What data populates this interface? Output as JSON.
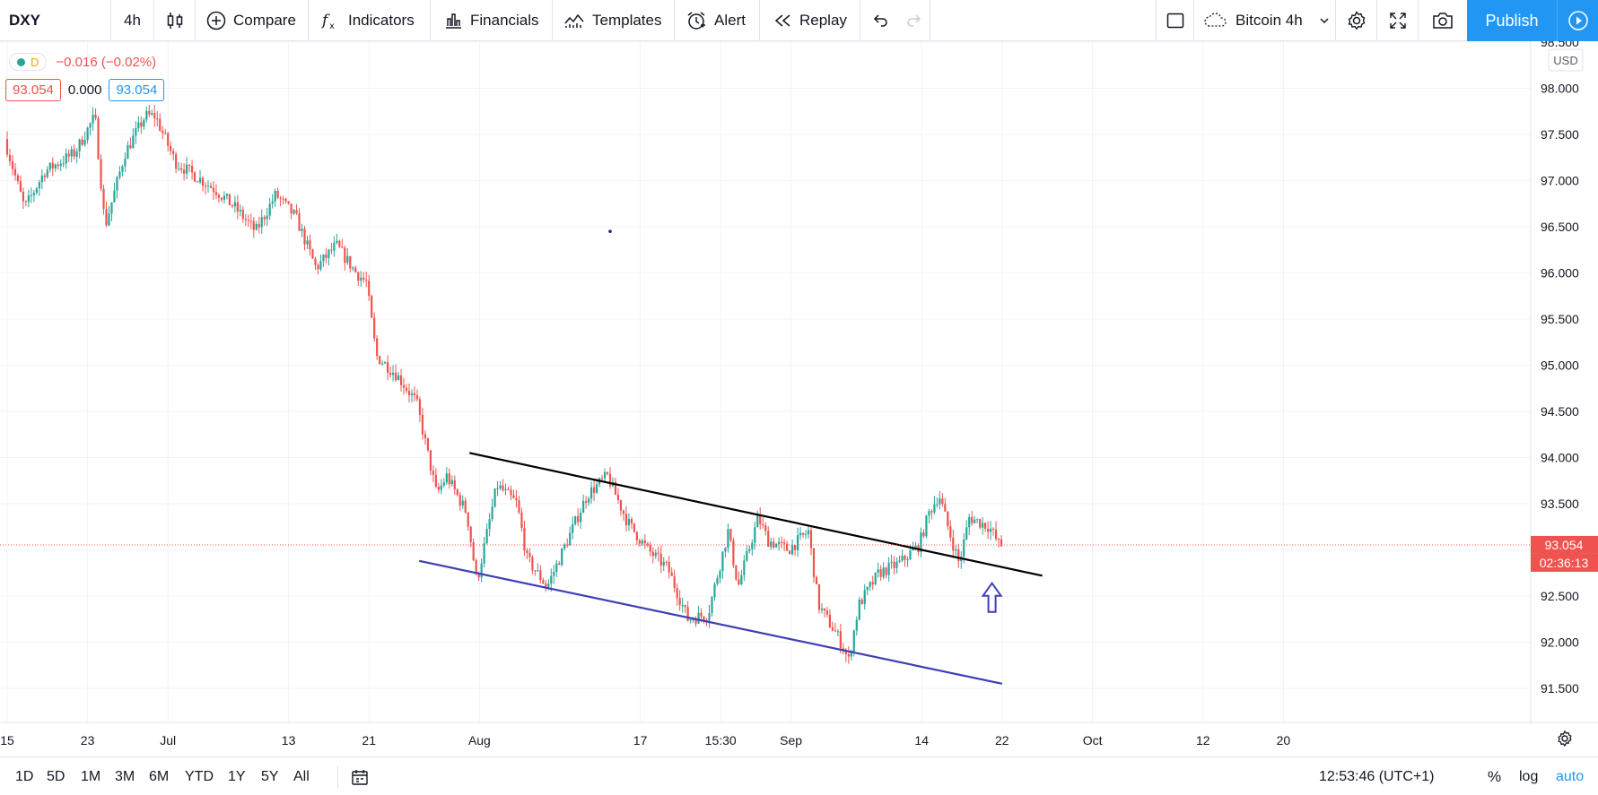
{
  "toolbar": {
    "symbol": "DXY",
    "interval": "4h",
    "compare": "Compare",
    "indicators": "Indicators",
    "financials": "Financials",
    "templates": "Templates",
    "alert": "Alert",
    "replay": "Replay",
    "layout_name": "Bitcoin 4h",
    "publish": "Publish"
  },
  "legend": {
    "badge": "D",
    "change": "−0.016 (−0.02%)",
    "bid": "93.054",
    "spread": "0.000",
    "ask": "93.054"
  },
  "price_axis": {
    "currency": "USD",
    "ticks": [
      "98.500",
      "98.000",
      "97.500",
      "97.000",
      "96.500",
      "96.000",
      "95.500",
      "95.000",
      "94.500",
      "94.000",
      "93.500",
      "93.000",
      "92.500",
      "92.000",
      "91.500"
    ],
    "last_price": "93.054",
    "countdown": "02:36:13"
  },
  "time_axis": {
    "ticks": [
      "15",
      "23",
      "Jul",
      "13",
      "21",
      "Aug",
      "17",
      "15:30",
      "Sep",
      "14",
      "22",
      "Oct",
      "12",
      "20"
    ]
  },
  "bottom": {
    "ranges": [
      "1D",
      "5D",
      "1M",
      "3M",
      "6M",
      "YTD",
      "1Y",
      "5Y",
      "All"
    ],
    "clock": "12:53:46 (UTC+1)",
    "percent": "%",
    "log": "log",
    "auto": "auto"
  },
  "colors": {
    "up": "#26a69a",
    "down": "#ef5350",
    "accent": "#2196f3",
    "upper_trendline": "#000000",
    "lower_trendline": "#3f3fb5",
    "arrow": "#3f3fb5"
  },
  "icons": [
    "candles-icon",
    "plus-circle-icon",
    "fx-icon",
    "financials-icon",
    "templates-icon",
    "alarm-clock-icon",
    "rewind-icon",
    "undo-icon",
    "redo-icon",
    "layout-square-icon",
    "cloud-icon",
    "chevron-down-icon",
    "gear-icon",
    "fullscreen-icon",
    "camera-icon",
    "play-icon",
    "calendar-icon",
    "axis-settings-icon"
  ],
  "chart_data": {
    "type": "candlestick",
    "symbol": "DXY",
    "interval": "4h",
    "y_unit": "USD",
    "ylim": [
      91.2,
      98.6
    ],
    "last_price": 93.054,
    "grid": true,
    "x_range": [
      "2020-06-15",
      "2020-10-22"
    ],
    "series": [
      {
        "name": "",
        "anchors": [
          [
            "2020-06-15",
            97.45
          ],
          [
            "2020-06-17",
            96.7
          ],
          [
            "2020-06-19",
            97.1
          ],
          [
            "2020-06-22",
            97.3
          ],
          [
            "2020-06-24",
            97.7
          ],
          [
            "2020-06-25",
            96.5
          ],
          [
            "2020-06-27",
            97.3
          ],
          [
            "2020-06-29",
            97.7
          ],
          [
            "2020-06-30",
            97.7
          ],
          [
            "2020-07-02",
            97.2
          ],
          [
            "2020-07-06",
            96.9
          ],
          [
            "2020-07-08",
            96.7
          ],
          [
            "2020-07-10",
            96.45
          ],
          [
            "2020-07-12",
            96.85
          ],
          [
            "2020-07-14",
            96.6
          ],
          [
            "2020-07-16",
            96.05
          ],
          [
            "2020-07-18",
            96.3
          ],
          [
            "2020-07-20",
            96.0
          ],
          [
            "2020-07-21",
            95.9
          ],
          [
            "2020-07-22",
            95.1
          ],
          [
            "2020-07-24",
            94.9
          ],
          [
            "2020-07-26",
            94.6
          ],
          [
            "2020-07-27",
            94.1
          ],
          [
            "2020-07-28",
            93.6
          ],
          [
            "2020-07-29",
            93.8
          ],
          [
            "2020-07-31",
            93.4
          ],
          [
            "2020-08-01",
            92.65
          ],
          [
            "2020-08-03",
            93.7
          ],
          [
            "2020-08-05",
            93.5
          ],
          [
            "2020-08-06",
            92.9
          ],
          [
            "2020-08-08",
            92.6
          ],
          [
            "2020-08-10",
            93.1
          ],
          [
            "2020-08-12",
            93.6
          ],
          [
            "2020-08-14",
            93.8
          ],
          [
            "2020-08-16",
            93.3
          ],
          [
            "2020-08-18",
            93.0
          ],
          [
            "2020-08-20",
            92.8
          ],
          [
            "2020-08-22",
            92.25
          ],
          [
            "2020-08-24",
            92.3
          ],
          [
            "2020-08-26",
            93.2
          ],
          [
            "2020-08-27",
            92.6
          ],
          [
            "2020-08-29",
            93.35
          ],
          [
            "2020-08-30",
            93.1
          ],
          [
            "2020-09-01",
            93.0
          ],
          [
            "2020-09-03",
            93.2
          ],
          [
            "2020-09-04",
            92.4
          ],
          [
            "2020-09-06",
            92.05
          ],
          [
            "2020-09-07",
            91.8
          ],
          [
            "2020-09-08",
            92.4
          ],
          [
            "2020-09-10",
            92.75
          ],
          [
            "2020-09-12",
            92.85
          ],
          [
            "2020-09-14",
            93.05
          ],
          [
            "2020-09-15",
            93.4
          ],
          [
            "2020-09-16",
            93.6
          ],
          [
            "2020-09-17",
            93.2
          ],
          [
            "2020-09-18",
            92.85
          ],
          [
            "2020-09-19",
            93.35
          ],
          [
            "2020-09-21",
            93.25
          ],
          [
            "2020-09-22",
            93.05
          ]
        ]
      }
    ],
    "drawings": [
      {
        "type": "trendline",
        "from": [
          "2020-07-31",
          94.05
        ],
        "to": [
          "2020-09-26",
          92.72
        ]
      },
      {
        "type": "trendline",
        "from": [
          "2020-07-26",
          92.88
        ],
        "to": [
          "2020-09-22",
          91.55
        ]
      },
      {
        "type": "arrow",
        "direction": "up",
        "at": [
          "2020-09-21",
          92.6
        ]
      },
      {
        "type": "dot",
        "at": [
          "2020-08-14",
          96.45
        ]
      }
    ]
  }
}
